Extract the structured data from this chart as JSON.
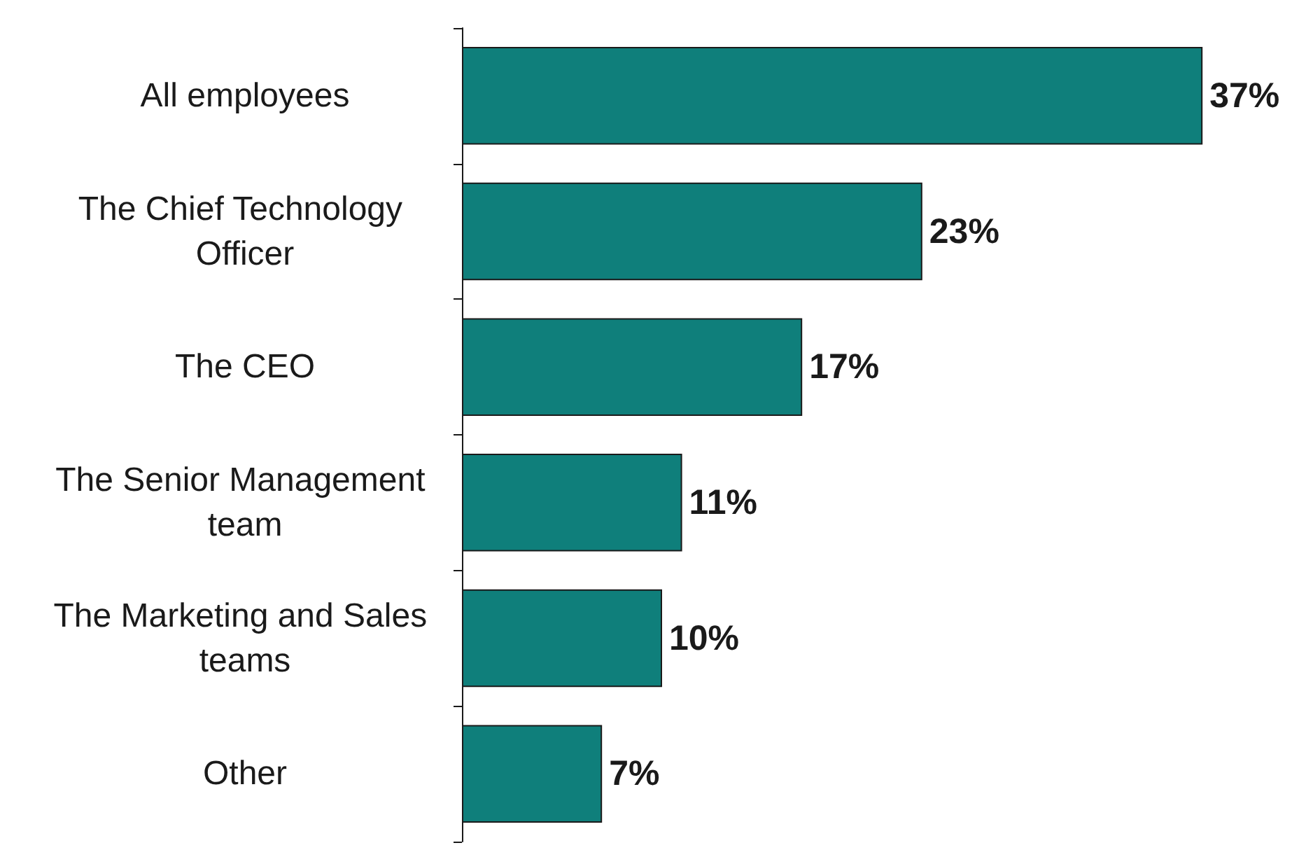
{
  "chart_data": {
    "type": "bar",
    "orientation": "horizontal",
    "categories": [
      "All employees",
      "The Chief Technology Officer",
      "The CEO",
      "The Senior Management team",
      "The Marketing and Sales teams",
      "Other"
    ],
    "values": [
      37,
      23,
      17,
      11,
      10,
      7
    ],
    "value_labels": [
      "37%",
      "23%",
      "17%",
      "11%",
      "10%",
      "7%"
    ],
    "color": "#0f7f7b"
  }
}
